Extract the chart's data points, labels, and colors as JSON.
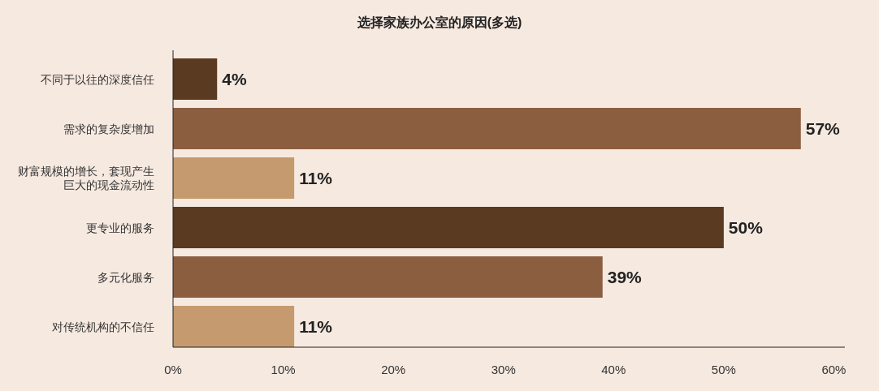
{
  "chart_data": {
    "type": "bar",
    "orientation": "horizontal",
    "title": "选择家族办公室的原因(多选)",
    "categories": [
      "不同于以往的深度信任",
      "需求的复杂度增加",
      "财富规模的增长，套现产生巨大的现金流动性",
      "更专业的服务",
      "多元化服务",
      "对传统机构的不信任"
    ],
    "values": [
      4,
      57,
      11,
      50,
      39,
      11
    ],
    "colors": [
      "#5a3a20",
      "#8b5e3f",
      "#c49a6e",
      "#5a3a20",
      "#8b5e3f",
      "#c49a6e"
    ],
    "value_labels": [
      "4%",
      "57%",
      "11%",
      "50%",
      "39%",
      "11%"
    ],
    "xlim": [
      0,
      61
    ],
    "xticks": [
      {
        "value": 0,
        "label": "0%"
      },
      {
        "value": 10,
        "label": "10%"
      },
      {
        "value": 20,
        "label": "20%"
      },
      {
        "value": 30,
        "label": "30%"
      },
      {
        "value": 40,
        "label": "40%"
      },
      {
        "value": 50,
        "label": "50%"
      },
      {
        "value": 60,
        "label": "60%"
      }
    ]
  }
}
